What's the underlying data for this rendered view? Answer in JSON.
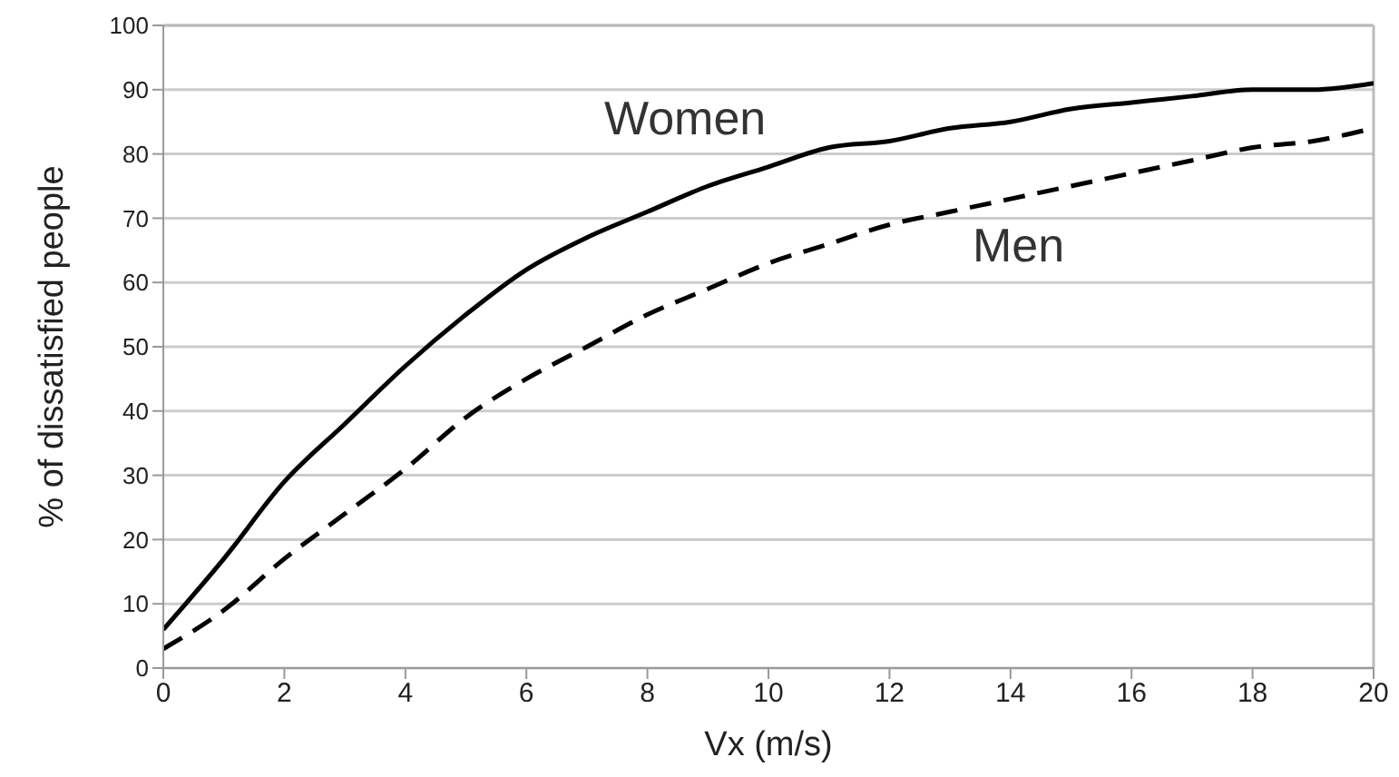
{
  "chart_data": {
    "type": "line",
    "xlabel": "Vx (m/s)",
    "ylabel": "% of dissatisfied people",
    "x": [
      0,
      1,
      2,
      3,
      4,
      5,
      6,
      7,
      8,
      9,
      10,
      11,
      12,
      13,
      14,
      15,
      16,
      17,
      18,
      19,
      20
    ],
    "series": [
      {
        "name": "Women",
        "color": "#000000",
        "line_style": "solid",
        "values": [
          6,
          17,
          29,
          38,
          47,
          55,
          62,
          67,
          71,
          75,
          78,
          81,
          82,
          84,
          85,
          87,
          88,
          89,
          90,
          90,
          91
        ]
      },
      {
        "name": "Men",
        "color": "#000000",
        "line_style": "dashed",
        "values": [
          3,
          9,
          17,
          24,
          31,
          39,
          45,
          50,
          55,
          59,
          63,
          66,
          69,
          71,
          73,
          75,
          77,
          79,
          81,
          82,
          84
        ]
      }
    ],
    "xlim": [
      0,
      20
    ],
    "xticks": [
      0,
      2,
      4,
      6,
      8,
      10,
      12,
      14,
      16,
      18,
      20
    ],
    "ylim": [
      0,
      100
    ],
    "yticks": [
      0,
      10,
      20,
      30,
      40,
      50,
      60,
      70,
      80,
      90,
      100
    ],
    "grid": "y",
    "legend": false,
    "marker": "none"
  }
}
